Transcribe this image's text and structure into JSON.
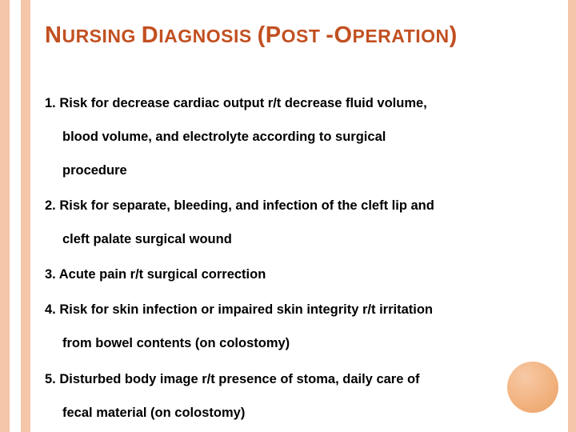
{
  "title": {
    "parts": [
      {
        "text": "N",
        "class": "big"
      },
      {
        "text": "URSING ",
        "class": "small"
      },
      {
        "text": "D",
        "class": "big"
      },
      {
        "text": "IAGNOSIS ",
        "class": "small"
      },
      {
        "text": "(P",
        "class": "big"
      },
      {
        "text": "OST ",
        "class": "small"
      },
      {
        "text": "-O",
        "class": "big"
      },
      {
        "text": "PERATION",
        "class": "small"
      },
      {
        "text": ")",
        "class": "big"
      }
    ]
  },
  "items": [
    {
      "line1": "1. Risk for decrease cardiac output r/t decrease fluid volume,",
      "line2": "blood volume, and electrolyte according to surgical",
      "line3": "procedure"
    },
    {
      "line1": "2. Risk for separate, bleeding, and infection of the cleft lip and",
      "line2": "cleft palate surgical wound"
    },
    {
      "line1": "3. Acute pain r/t surgical correction"
    },
    {
      "line1": "4. Risk for skin infection or impaired skin integrity r/t irritation",
      "line2": "from bowel contents (on colostomy)"
    },
    {
      "line1": "5. Disturbed body image r/t presence of stoma, daily care of",
      "line2": "fecal material (on colostomy)"
    }
  ],
  "colors": {
    "title": "#c25021",
    "stripe": "#f6c6a8",
    "text": "#000000",
    "background": "#ffffff"
  }
}
